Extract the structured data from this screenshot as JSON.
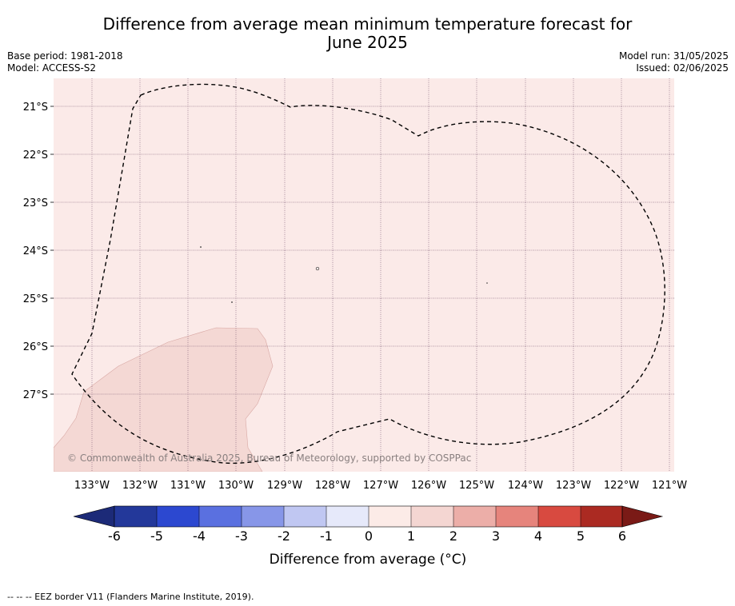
{
  "title": {
    "line1": "Difference from average mean minimum temperature forecast for",
    "line2": "June 2025"
  },
  "meta": {
    "base_period": "Base period: 1981-2018",
    "model": "Model: ACCESS-S2",
    "model_run": "Model run: 31/05/2025",
    "issued": "Issued: 02/06/2025"
  },
  "map": {
    "lat_labels": [
      "21°S",
      "22°S",
      "23°S",
      "24°S",
      "25°S",
      "26°S",
      "27°S"
    ],
    "lon_labels": [
      "133°W",
      "132°W",
      "131°W",
      "130°W",
      "129°W",
      "128°W",
      "127°W",
      "126°W",
      "125°W",
      "124°W",
      "123°W",
      "122°W",
      "121°W"
    ],
    "attribution": "© Commonwealth of Australia 2025, Bureau of Meteorology, supported by COSPPac",
    "background_color": "#fbeae8",
    "anomaly_patch_color": "#f4d8d4"
  },
  "colorbar": {
    "ticks": [
      "-6",
      "-5",
      "-4",
      "-3",
      "-2",
      "-1",
      "0",
      "1",
      "2",
      "3",
      "4",
      "5",
      "6"
    ],
    "label": "Difference from average (°C)",
    "colors": [
      "#23389a",
      "#2c48d0",
      "#5a70e0",
      "#8796e8",
      "#c0c7f2",
      "#e6e9fa",
      "#fcebe7",
      "#f4d6d2",
      "#ecaea8",
      "#e6847c",
      "#d84a40",
      "#ab2a22"
    ],
    "under_color": "#1c2a78",
    "over_color": "#7a1a16"
  },
  "footnote": "-- -- -- EEZ border V11 (Flanders Marine Institute, 2019)."
}
